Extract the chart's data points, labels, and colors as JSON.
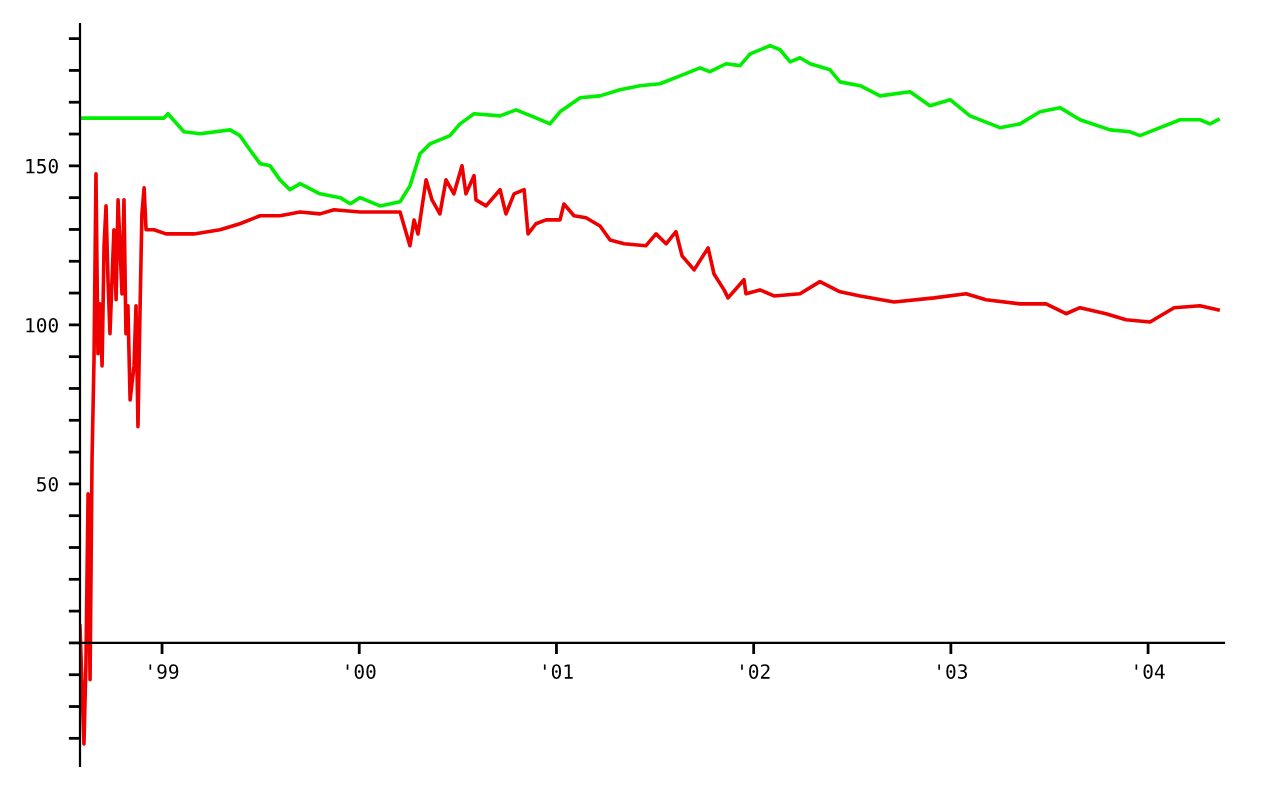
{
  "chart_data": {
    "type": "line",
    "xlim": [
      1998.584,
      2004.385
    ],
    "ylim": [
      -38.7,
      194.6
    ],
    "xticks": [
      {
        "value": 1999,
        "label": "'99"
      },
      {
        "value": 2000,
        "label": "'00"
      },
      {
        "value": 2001,
        "label": "'01"
      },
      {
        "value": 2002,
        "label": "'02"
      },
      {
        "value": 2003,
        "label": "'03"
      },
      {
        "value": 2004,
        "label": "'04"
      }
    ],
    "yticks": [
      {
        "value": -30,
        "label": null
      },
      {
        "value": -20,
        "label": null
      },
      {
        "value": -10,
        "label": null
      },
      {
        "value": 0,
        "label": null
      },
      {
        "value": 10,
        "label": null
      },
      {
        "value": 20,
        "label": null
      },
      {
        "value": 30,
        "label": null
      },
      {
        "value": 40,
        "label": null
      },
      50,
      {
        "value": 60,
        "label": null
      },
      {
        "value": 70,
        "label": null
      },
      {
        "value": 80,
        "label": null
      },
      {
        "value": 90,
        "label": null
      },
      100,
      {
        "value": 110,
        "label": null
      },
      {
        "value": 120,
        "label": null
      },
      {
        "value": 130,
        "label": null
      },
      {
        "value": 140,
        "label": null
      },
      150,
      {
        "value": 160,
        "label": null
      },
      {
        "value": 170,
        "label": null
      },
      {
        "value": 180,
        "label": null
      },
      {
        "value": 190,
        "label": null
      }
    ],
    "grid": false,
    "legend": false,
    "marker": "none",
    "line_style": "solid",
    "series": [
      {
        "color": "#00ee00",
        "x": [
          1998.584,
          1999.01,
          1999.03,
          1999.111,
          1999.193,
          1999.345,
          1999.395,
          1999.446,
          1999.497,
          1999.548,
          1999.598,
          1999.649,
          1999.7,
          1999.801,
          1999.903,
          1999.954,
          2000.004,
          2000.105,
          2000.207,
          2000.257,
          2000.308,
          2000.359,
          2000.46,
          2000.511,
          2000.582,
          2000.714,
          2000.795,
          2000.896,
          2000.967,
          2001.018,
          2001.12,
          2001.221,
          2001.322,
          2001.424,
          2001.525,
          2001.627,
          2001.728,
          2001.779,
          2001.86,
          2001.931,
          2001.982,
          2002.083,
          2002.134,
          2002.185,
          2002.235,
          2002.286,
          2002.387,
          2002.438,
          2002.54,
          2002.641,
          2002.793,
          2002.894,
          2002.996,
          2003.097,
          2003.249,
          2003.351,
          2003.452,
          2003.553,
          2003.655,
          2003.807,
          2003.909,
          2003.959,
          2004.061,
          2004.162,
          2004.263,
          2004.314,
          2004.355
        ],
        "values": [
          165,
          165,
          166.4,
          160.7,
          160.1,
          161.3,
          159.5,
          155.0,
          150.7,
          150.0,
          145.6,
          142.5,
          144.4,
          141.2,
          140.0,
          138.1,
          140.0,
          137.4,
          138.7,
          143.7,
          153.8,
          156.9,
          159.5,
          163.2,
          166.4,
          165.7,
          167.6,
          165.1,
          163.2,
          167.0,
          171.4,
          172.0,
          173.9,
          175.2,
          175.8,
          178.3,
          180.8,
          179.6,
          182.1,
          181.5,
          185.2,
          187.8,
          186.5,
          182.7,
          184.0,
          182.1,
          180.2,
          176.4,
          175.2,
          172.0,
          173.3,
          168.9,
          170.8,
          165.7,
          162.0,
          163.2,
          167.0,
          168.3,
          164.5,
          161.3,
          160.7,
          159.5,
          162.0,
          164.5,
          164.5,
          163.2,
          164.5
        ]
      },
      {
        "color": "#ee0000",
        "x": [
          1998.584,
          1998.604,
          1998.614,
          1998.625,
          1998.635,
          1998.645,
          1998.655,
          1998.665,
          1998.675,
          1998.685,
          1998.696,
          1998.706,
          1998.716,
          1998.726,
          1998.736,
          1998.756,
          1998.767,
          1998.777,
          1998.797,
          1998.807,
          1998.817,
          1998.827,
          1998.838,
          1998.858,
          1998.868,
          1998.878,
          1998.888,
          1998.898,
          1998.909,
          1998.919,
          1998.959,
          1999.02,
          1999.091,
          1999.162,
          1999.294,
          1999.395,
          1999.497,
          1999.598,
          1999.7,
          1999.801,
          1999.872,
          2000.004,
          2000.207,
          2000.257,
          2000.278,
          2000.298,
          2000.339,
          2000.369,
          2000.409,
          2000.44,
          2000.48,
          2000.521,
          2000.541,
          2000.582,
          2000.592,
          2000.643,
          2000.714,
          2000.744,
          2000.785,
          2000.836,
          2000.856,
          2000.896,
          2000.947,
          2001.018,
          2001.038,
          2001.089,
          2001.15,
          2001.221,
          2001.272,
          2001.343,
          2001.454,
          2001.505,
          2001.556,
          2001.606,
          2001.637,
          2001.698,
          2001.769,
          2001.799,
          2001.85,
          2001.87,
          2001.951,
          2001.961,
          2002.032,
          2002.103,
          2002.235,
          2002.336,
          2002.438,
          2002.54,
          2002.712,
          2002.915,
          2003.077,
          2003.178,
          2003.351,
          2003.483,
          2003.584,
          2003.655,
          2003.787,
          2003.888,
          2004.01,
          2004.061,
          2004.132,
          2004.263,
          2004.355
        ],
        "values": [
          5.3,
          -31.8,
          -7.2,
          46.9,
          -11.6,
          57.6,
          89.0,
          147.5,
          90.9,
          106.6,
          87.1,
          124.9,
          137.4,
          114.1,
          97.2,
          129.9,
          107.9,
          139.3,
          109.7,
          139.3,
          97.2,
          106.0,
          76.4,
          87.1,
          106.0,
          68.0,
          103.5,
          134.9,
          143.1,
          129.9,
          129.9,
          128.6,
          128.6,
          128.6,
          129.9,
          131.8,
          134.3,
          134.3,
          135.5,
          134.9,
          136.2,
          135.5,
          135.5,
          124.9,
          133.0,
          128.6,
          145.6,
          139.3,
          134.9,
          145.6,
          141.2,
          150.0,
          141.2,
          146.9,
          139.3,
          137.4,
          142.5,
          134.9,
          141.2,
          142.5,
          128.6,
          131.8,
          133.0,
          133.0,
          138.0,
          134.3,
          133.7,
          131.1,
          126.7,
          125.5,
          124.9,
          128.6,
          125.5,
          129.3,
          121.7,
          117.3,
          124.2,
          116.0,
          111.0,
          108.5,
          114.2,
          109.8,
          111.0,
          109.1,
          109.8,
          113.6,
          110.4,
          109.1,
          107.2,
          108.5,
          109.8,
          107.9,
          106.6,
          106.6,
          103.5,
          105.4,
          103.5,
          101.6,
          100.9,
          102.8,
          105.4,
          106.0,
          104.7
        ]
      }
    ]
  }
}
